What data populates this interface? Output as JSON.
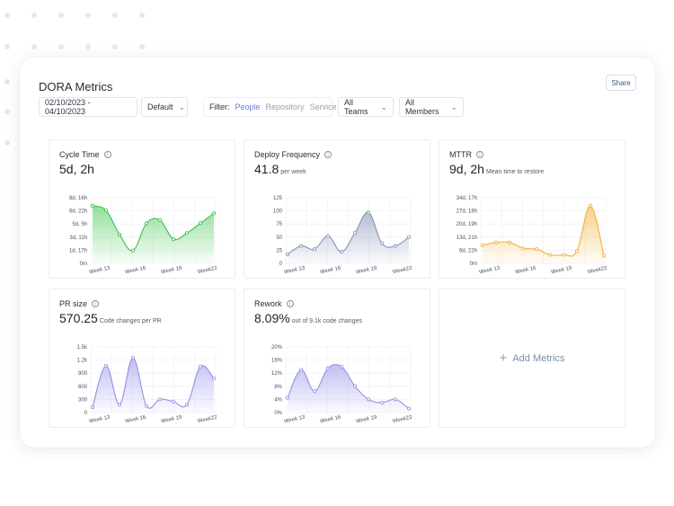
{
  "app": {
    "title": "DORA Metrics",
    "share_label": "Share"
  },
  "toolbar": {
    "date_range": "02/10/2023 - 04/10/2023",
    "preset": "Default",
    "filter_label": "Filter:",
    "filter_options": [
      "People",
      "Repository",
      "Service"
    ],
    "filter_selected": "People",
    "teams": "All Teams",
    "members": "All Members"
  },
  "icons": {
    "chevron": "chevron-down-icon",
    "info": "info-icon",
    "plus": "plus-icon"
  },
  "colors": {
    "green": "#4cc25a",
    "slate": "#8f9bbb",
    "orange": "#f5b341",
    "purple": "#9a97e6",
    "accent": "#6b7fdc"
  },
  "panels": [
    {
      "title": "Cycle Time",
      "value": "5d, 2h",
      "sub": "",
      "chart_data": {
        "type": "area",
        "color": "#4cc25a",
        "fill_top": "#7fd98a",
        "y_ticks": [
          "0m",
          "1d, 17h",
          "3d, 11h",
          "5d, 5h",
          "6d, 22h",
          "8d, 16h"
        ],
        "x_ticks": [
          "Week 13",
          "Week 16",
          "Week 19",
          "Week22"
        ],
        "ylim": [
          0,
          8.667
        ],
        "values": [
          7.6,
          7.0,
          3.8,
          1.7,
          5.3,
          5.7,
          3.2,
          4.0,
          5.3,
          6.6
        ]
      }
    },
    {
      "title": "Deploy Frequency",
      "value": "41.8",
      "sub": "per week",
      "chart_data": {
        "type": "area",
        "color": "#8f9bbb",
        "fill_top": "#aab3cc",
        "y_ticks": [
          "0",
          "25",
          "50",
          "75",
          "100",
          "125"
        ],
        "x_ticks": [
          "Week 13",
          "Week 16",
          "Week 19",
          "Week22"
        ],
        "ylim": [
          0,
          125
        ],
        "values": [
          17,
          33,
          27,
          52,
          22,
          58,
          97,
          38,
          33,
          50
        ]
      }
    },
    {
      "title": "MTTR",
      "value": "9d, 2h",
      "sub": "Mean time to restore",
      "chart_data": {
        "type": "area",
        "color": "#f5b341",
        "fill_top": "#f7c873",
        "y_ticks": [
          "0m",
          "6d, 22h",
          "13d, 21h",
          "20d, 19h",
          "27d, 18h",
          "34d, 17h"
        ],
        "x_ticks": [
          "Week 13",
          "Week 16",
          "Week 19",
          "Week22"
        ],
        "ylim": [
          0,
          34.7
        ],
        "values": [
          9.5,
          11.0,
          11.0,
          8.0,
          7.5,
          4.5,
          4.5,
          6.5,
          30.5,
          4.0
        ]
      }
    },
    {
      "title": "PR size",
      "value": "570.25",
      "sub": "Code changes per PR",
      "chart_data": {
        "type": "area",
        "color": "#9a97e6",
        "fill_top": "#b7b4f0",
        "y_ticks": [
          "0",
          "300",
          "600",
          "900",
          "1.2k",
          "1.5k"
        ],
        "x_ticks": [
          "Week 13",
          "Week 16",
          "Week 19",
          "Week22"
        ],
        "ylim": [
          0,
          1500
        ],
        "values": [
          120,
          1070,
          180,
          1250,
          150,
          300,
          250,
          180,
          1050,
          780
        ]
      }
    },
    {
      "title": "Rework",
      "value": "8.09%",
      "sub": "out of 9.1k code changes",
      "chart_data": {
        "type": "area",
        "color": "#9a97e6",
        "fill_top": "#b7b4f0",
        "y_ticks": [
          "0%",
          "4%",
          "8%",
          "12%",
          "16%",
          "20%"
        ],
        "x_ticks": [
          "Week 13",
          "Week 16",
          "Week 19",
          "Week22"
        ],
        "ylim": [
          0,
          20
        ],
        "values": [
          4.5,
          13.0,
          6.5,
          13.5,
          14.0,
          8.0,
          4.0,
          3.0,
          4.0,
          1.2
        ]
      }
    }
  ],
  "add_panel": {
    "label": "Add Metrics"
  }
}
